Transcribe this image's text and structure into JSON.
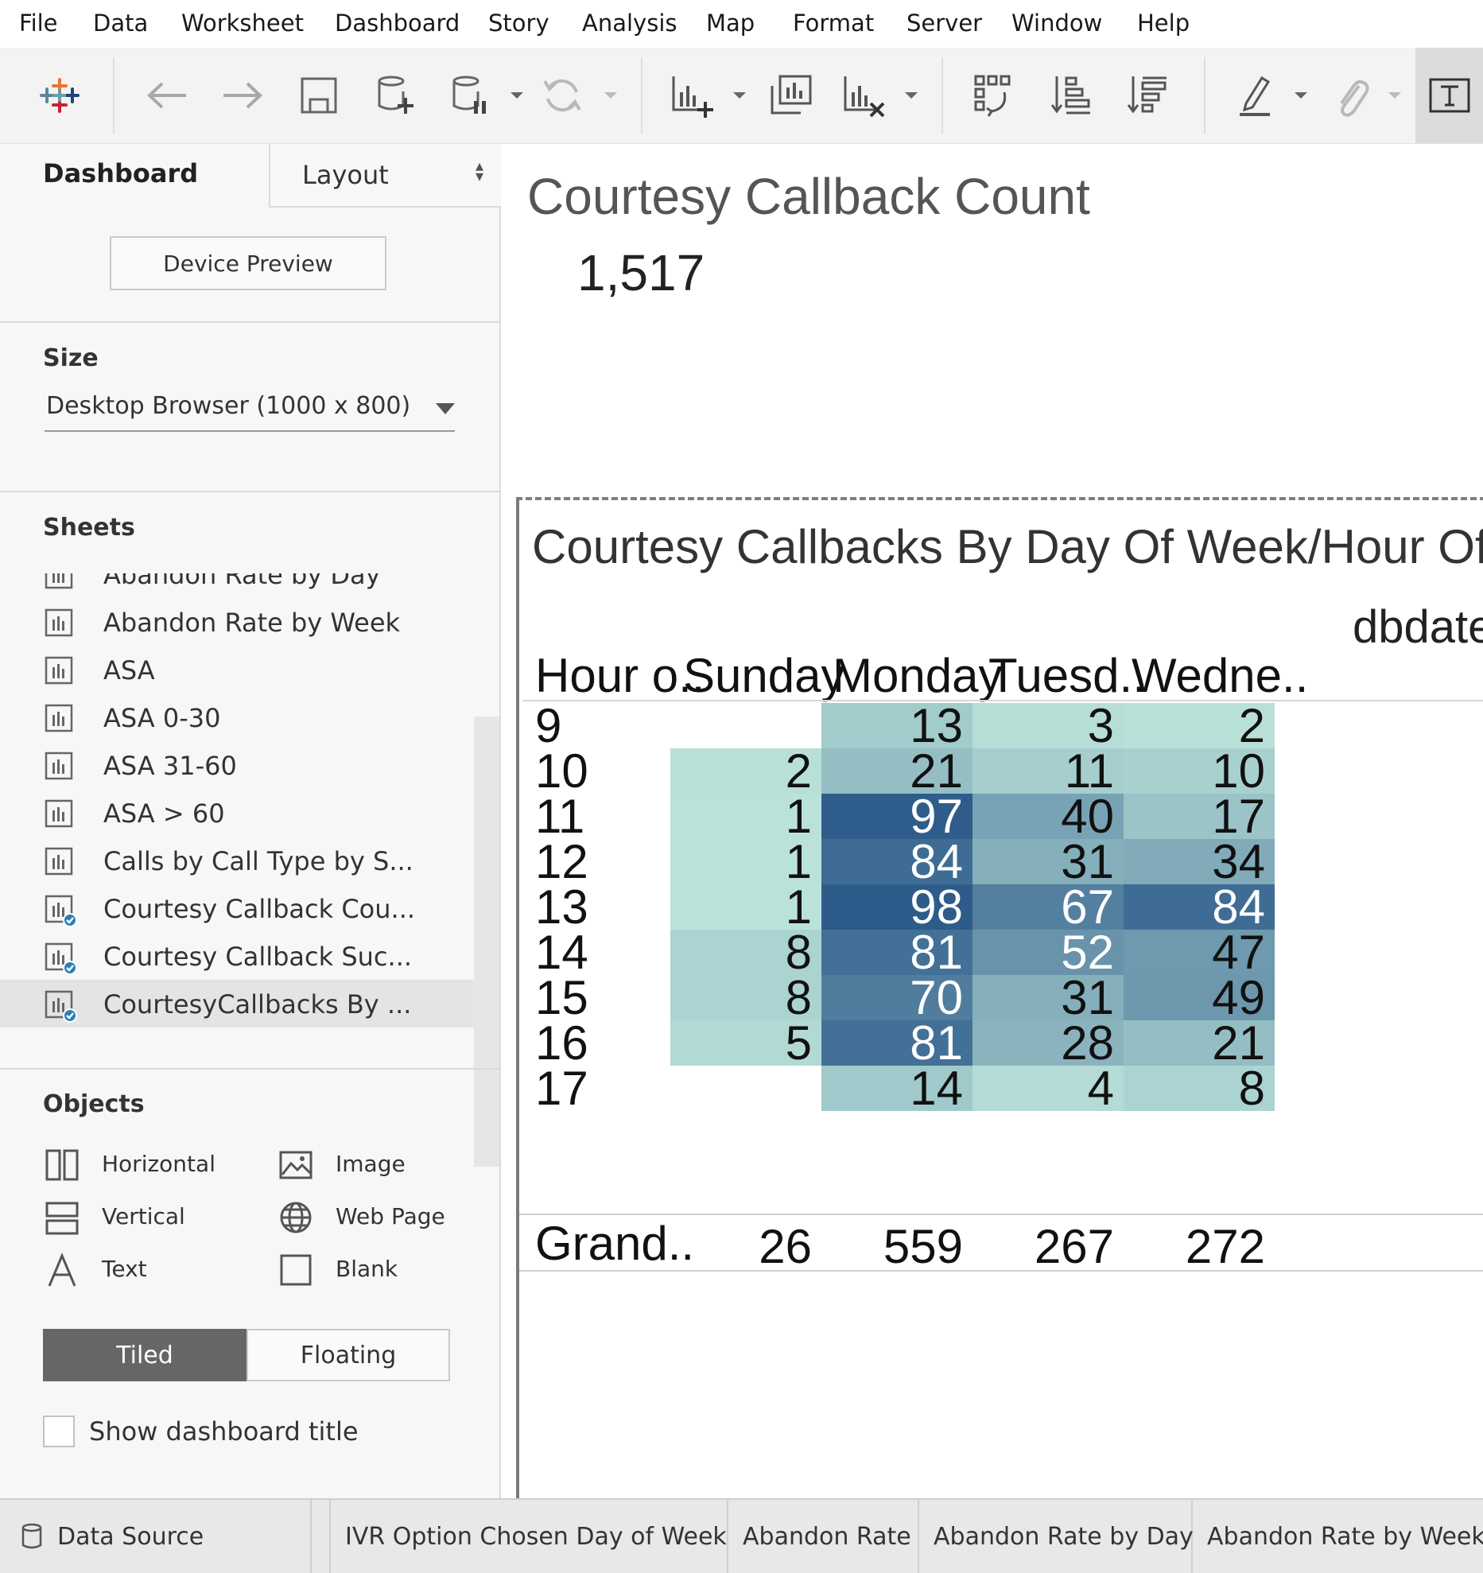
{
  "menu": [
    "File",
    "Data",
    "Worksheet",
    "Dashboard",
    "Story",
    "Analysis",
    "Map",
    "Format",
    "Server",
    "Window",
    "Help"
  ],
  "left_panel": {
    "tabs": {
      "dashboard": "Dashboard",
      "layout": "Layout"
    },
    "device_preview": "Device Preview",
    "size": {
      "heading": "Size",
      "value": "Desktop Browser (1000 x 800)"
    },
    "sheets": {
      "heading": "Sheets",
      "items": [
        {
          "label": "Abandon Rate by Day",
          "used": false
        },
        {
          "label": "Abandon Rate by Week",
          "used": false
        },
        {
          "label": "ASA",
          "used": false
        },
        {
          "label": "ASA 0-30",
          "used": false
        },
        {
          "label": "ASA 31-60",
          "used": false
        },
        {
          "label": "ASA > 60",
          "used": false
        },
        {
          "label": "Calls by Call Type by S...",
          "used": false
        },
        {
          "label": "Courtesy Callback Cou...",
          "used": true
        },
        {
          "label": "Courtesy Callback Suc...",
          "used": true
        },
        {
          "label": "CourtesyCallbacks By ...",
          "used": true,
          "selected": true
        }
      ]
    },
    "objects": {
      "heading": "Objects",
      "items": [
        "Horizontal",
        "Image",
        "Vertical",
        "Web Page",
        "Text",
        "Blank"
      ]
    },
    "tiled": "Tiled",
    "floating": "Floating",
    "show_title": "Show dashboard title"
  },
  "dashboard": {
    "kpi": {
      "title": "Courtesy Callback Count",
      "value": "1,517"
    },
    "viz": {
      "title": "Courtesy Callbacks By Day Of Week/Hour Of",
      "column_field": "dbdate",
      "row_header": "Hour o..",
      "columns": [
        "Sunday",
        "Monday",
        "Tuesd..",
        "Wedne.."
      ],
      "rows": [
        {
          "hour": "9",
          "values": [
            "",
            "13",
            "3",
            "2"
          ]
        },
        {
          "hour": "10",
          "values": [
            "2",
            "21",
            "11",
            "10"
          ]
        },
        {
          "hour": "11",
          "values": [
            "1",
            "97",
            "40",
            "17"
          ]
        },
        {
          "hour": "12",
          "values": [
            "1",
            "84",
            "31",
            "34"
          ]
        },
        {
          "hour": "13",
          "values": [
            "1",
            "98",
            "67",
            "84"
          ]
        },
        {
          "hour": "14",
          "values": [
            "8",
            "81",
            "52",
            "47"
          ]
        },
        {
          "hour": "15",
          "values": [
            "8",
            "70",
            "31",
            "49"
          ]
        },
        {
          "hour": "16",
          "values": [
            "5",
            "81",
            "28",
            "21"
          ]
        },
        {
          "hour": "17",
          "values": [
            "",
            "14",
            "4",
            "8"
          ]
        }
      ],
      "grand_total_label": "Grand..",
      "grand_totals": [
        "26",
        "559",
        "267",
        "272"
      ]
    }
  },
  "chart_data": {
    "type": "heatmap",
    "title": "Courtesy Callbacks By Day Of Week/Hour Of",
    "xlabel": "dbdate",
    "ylabel": "Hour o..",
    "x": [
      "Sunday",
      "Monday",
      "Tuesd..",
      "Wedne.."
    ],
    "y": [
      9,
      10,
      11,
      12,
      13,
      14,
      15,
      16,
      17
    ],
    "values": [
      [
        null,
        13,
        3,
        2
      ],
      [
        2,
        21,
        11,
        10
      ],
      [
        1,
        97,
        40,
        17
      ],
      [
        1,
        84,
        31,
        34
      ],
      [
        1,
        98,
        67,
        84
      ],
      [
        8,
        81,
        52,
        47
      ],
      [
        8,
        70,
        31,
        49
      ],
      [
        5,
        81,
        28,
        21
      ],
      [
        null,
        14,
        4,
        8
      ]
    ],
    "grand_totals": [
      26,
      559,
      267,
      272
    ],
    "color_scale": [
      "#bfe6dc",
      "#2e5c8a"
    ]
  },
  "bottom_tabs": [
    "Data Source",
    "IVR Option Chosen Day of Week",
    "Abandon Rate",
    "Abandon Rate by Day",
    "Abandon Rate by Week"
  ]
}
